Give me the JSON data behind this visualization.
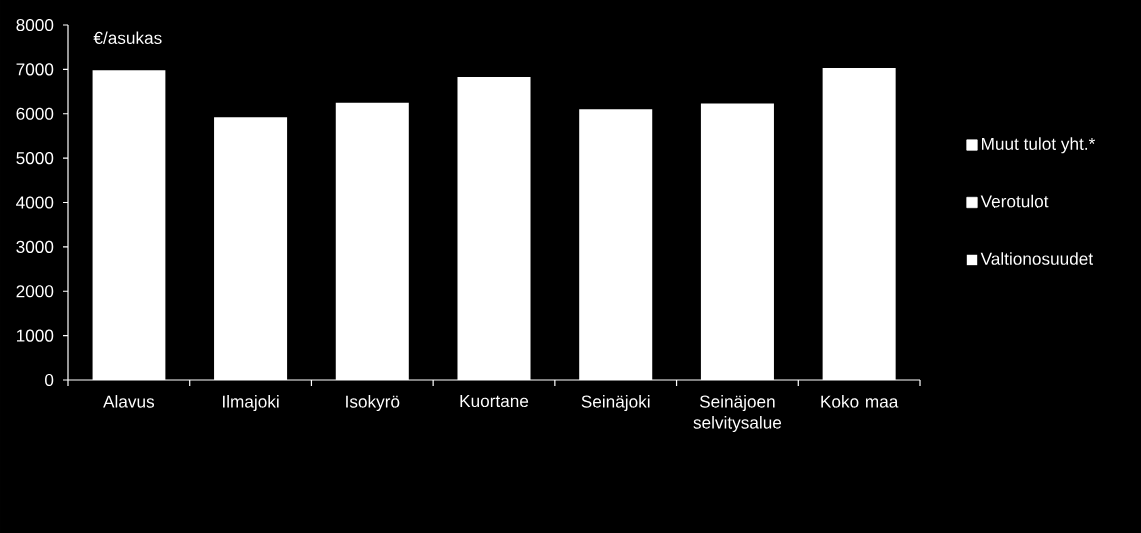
{
  "chart_data": {
    "type": "bar",
    "ylabel": "€/asukas",
    "categories": [
      "Alavus",
      "Ilmajoki",
      "Isokyrö",
      "Kuortane",
      "Seinäjoki",
      "Seinäjoen selvitysalue",
      "Koko maa"
    ],
    "stacked": true,
    "series": [
      {
        "name": "Valtionosuudet",
        "color": "#ffffff",
        "values": [
          6980,
          5920,
          6250,
          6830,
          6100,
          6230,
          7030
        ]
      },
      {
        "name": "Verotulot",
        "color": "#ffffff",
        "values": [
          null,
          null,
          null,
          null,
          null,
          null,
          null
        ]
      },
      {
        "name": "Muut tulot yht.*",
        "color": "#ffffff",
        "values": [
          null,
          null,
          null,
          null,
          null,
          null,
          null
        ]
      }
    ],
    "ylim": [
      0,
      8000
    ],
    "yticks": [
      0,
      1000,
      2000,
      3000,
      4000,
      5000,
      6000,
      7000,
      8000
    ],
    "legend": "right"
  }
}
